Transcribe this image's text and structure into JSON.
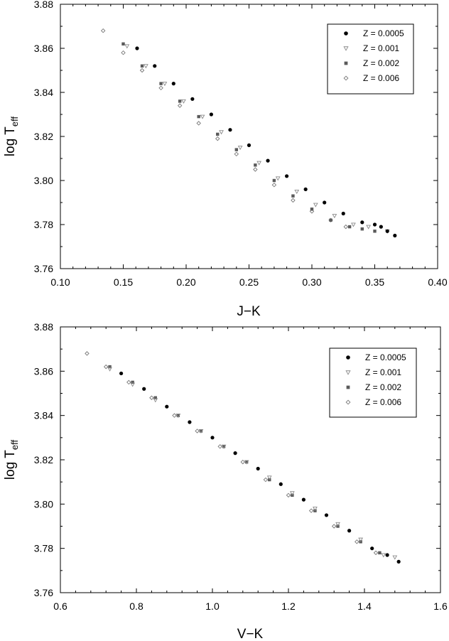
{
  "colors": {
    "background": "#ffffff",
    "axis": "#000000",
    "z0005": "#000000",
    "z001": "#8a8a8a",
    "z002": "#5a5a5a",
    "z006": "#777777"
  },
  "chart_data": [
    {
      "type": "scatter",
      "title": "",
      "xlabel": "J−K",
      "ylabel_main": "log T",
      "ylabel_sub": "eff",
      "xlim": [
        0.1,
        0.4
      ],
      "ylim": [
        3.76,
        3.88
      ],
      "xticks": [
        "0.10",
        "0.15",
        "0.20",
        "0.25",
        "0.30",
        "0.35",
        "0.40"
      ],
      "yticks": [
        "3.76",
        "3.78",
        "3.80",
        "3.82",
        "3.84",
        "3.86",
        "3.88"
      ],
      "xtick_values": [
        0.1,
        0.15,
        0.2,
        0.25,
        0.3,
        0.35,
        0.4
      ],
      "ytick_values": [
        3.76,
        3.78,
        3.8,
        3.82,
        3.84,
        3.86,
        3.88
      ],
      "grid": false,
      "legend_position": "top-right",
      "series": [
        {
          "name": "Z = 0.0005",
          "marker": "circle",
          "color_key": "z0005",
          "x": [
            0.161,
            0.175,
            0.19,
            0.205,
            0.22,
            0.235,
            0.25,
            0.265,
            0.28,
            0.295,
            0.31,
            0.325,
            0.34,
            0.35,
            0.355,
            0.36,
            0.366
          ],
          "y": [
            3.86,
            3.852,
            3.844,
            3.837,
            3.83,
            3.823,
            3.816,
            3.809,
            3.802,
            3.796,
            3.79,
            3.785,
            3.781,
            3.78,
            3.779,
            3.777,
            3.775
          ]
        },
        {
          "name": "Z = 0.001",
          "marker": "triangle-down",
          "color_key": "z001",
          "x": [
            0.153,
            0.168,
            0.183,
            0.198,
            0.213,
            0.228,
            0.243,
            0.258,
            0.273,
            0.288,
            0.303,
            0.318,
            0.333,
            0.345,
            0.36
          ],
          "y": [
            3.861,
            3.852,
            3.844,
            3.836,
            3.829,
            3.822,
            3.815,
            3.808,
            3.801,
            3.795,
            3.789,
            3.784,
            3.78,
            3.779,
            3.777
          ]
        },
        {
          "name": "Z = 0.002",
          "marker": "square",
          "color_key": "z002",
          "x": [
            0.15,
            0.165,
            0.18,
            0.195,
            0.21,
            0.225,
            0.24,
            0.255,
            0.27,
            0.285,
            0.3,
            0.315,
            0.33,
            0.34,
            0.35
          ],
          "y": [
            3.862,
            3.852,
            3.844,
            3.836,
            3.829,
            3.821,
            3.814,
            3.807,
            3.8,
            3.793,
            3.787,
            3.782,
            3.779,
            3.778,
            3.777
          ]
        },
        {
          "name": "Z = 0.006",
          "marker": "diamond",
          "color_key": "z006",
          "x": [
            0.134,
            0.15,
            0.165,
            0.18,
            0.195,
            0.21,
            0.225,
            0.24,
            0.255,
            0.27,
            0.285,
            0.3,
            0.315,
            0.327
          ],
          "y": [
            3.868,
            3.858,
            3.85,
            3.842,
            3.834,
            3.826,
            3.819,
            3.812,
            3.805,
            3.798,
            3.791,
            3.786,
            3.782,
            3.779
          ]
        }
      ]
    },
    {
      "type": "scatter",
      "title": "",
      "xlabel": "V−K",
      "ylabel_main": "log T",
      "ylabel_sub": "eff",
      "xlim": [
        0.6,
        1.6
      ],
      "ylim": [
        3.76,
        3.88
      ],
      "xticks": [
        "0.6",
        "0.8",
        "1.0",
        "1.2",
        "1.4",
        "1.6"
      ],
      "yticks": [
        "3.76",
        "3.78",
        "3.80",
        "3.82",
        "3.84",
        "3.86",
        "3.88"
      ],
      "xtick_values": [
        0.6,
        0.8,
        1.0,
        1.2,
        1.4,
        1.6
      ],
      "ytick_values": [
        3.76,
        3.78,
        3.8,
        3.82,
        3.84,
        3.86,
        3.88
      ],
      "grid": false,
      "legend_position": "top-right",
      "series": [
        {
          "name": "Z = 0.0005",
          "marker": "circle",
          "color_key": "z0005",
          "x": [
            0.76,
            0.82,
            0.88,
            0.94,
            1.0,
            1.06,
            1.12,
            1.18,
            1.24,
            1.3,
            1.36,
            1.42,
            1.46,
            1.49
          ],
          "y": [
            3.859,
            3.852,
            3.844,
            3.837,
            3.83,
            3.823,
            3.816,
            3.809,
            3.802,
            3.795,
            3.788,
            3.78,
            3.777,
            3.774
          ]
        },
        {
          "name": "Z = 0.001",
          "marker": "triangle-down",
          "color_key": "z001",
          "x": [
            0.73,
            0.79,
            0.85,
            0.91,
            0.97,
            1.03,
            1.09,
            1.15,
            1.21,
            1.27,
            1.33,
            1.39,
            1.45,
            1.48
          ],
          "y": [
            3.861,
            3.854,
            3.847,
            3.84,
            3.833,
            3.826,
            3.819,
            3.812,
            3.805,
            3.798,
            3.791,
            3.784,
            3.777,
            3.776
          ]
        },
        {
          "name": "Z = 0.002",
          "marker": "square",
          "color_key": "z002",
          "x": [
            0.73,
            0.79,
            0.85,
            0.91,
            0.97,
            1.03,
            1.09,
            1.15,
            1.21,
            1.27,
            1.33,
            1.39,
            1.44
          ],
          "y": [
            3.862,
            3.855,
            3.848,
            3.84,
            3.833,
            3.826,
            3.819,
            3.811,
            3.804,
            3.797,
            3.79,
            3.783,
            3.778
          ]
        },
        {
          "name": "Z = 0.006",
          "marker": "diamond",
          "color_key": "z006",
          "x": [
            0.67,
            0.72,
            0.78,
            0.84,
            0.9,
            0.96,
            1.02,
            1.08,
            1.14,
            1.2,
            1.26,
            1.32,
            1.38,
            1.43
          ],
          "y": [
            3.868,
            3.862,
            3.855,
            3.848,
            3.84,
            3.833,
            3.826,
            3.819,
            3.811,
            3.804,
            3.797,
            3.79,
            3.783,
            3.778
          ]
        }
      ]
    }
  ]
}
